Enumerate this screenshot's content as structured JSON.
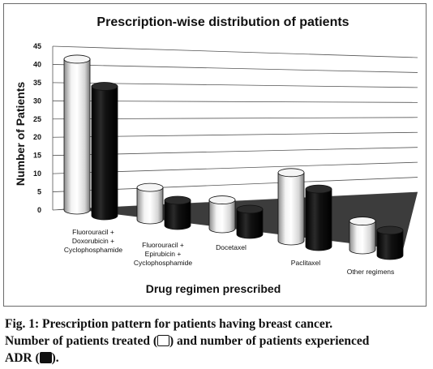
{
  "chart_data": {
    "type": "bar",
    "style": "3d-cylinder",
    "title": "Prescription-wise distribution of patients",
    "xlabel": "Drug regimen prescribed",
    "ylabel": "Number of Patients",
    "ylim": [
      0,
      45
    ],
    "yticks": [
      "0",
      "5",
      "10",
      "15",
      "20",
      "25",
      "30",
      "35",
      "40",
      "45"
    ],
    "grid": true,
    "categories": [
      [
        "Fluorouracil +",
        "Doxorubicin +",
        "Cyclophosphamide"
      ],
      [
        "Fluorouracil +",
        "Epirubicin +",
        "Cyclophosphamide"
      ],
      [
        "Docetaxel"
      ],
      [
        "Paclitaxel"
      ],
      [
        "Other regimens"
      ]
    ],
    "series": [
      {
        "values": [
          42,
          9,
          8,
          19,
          8
        ],
        "color": "#ffffff"
      },
      {
        "values": [
          36,
          7,
          7,
          16,
          7
        ],
        "color": "#000000"
      }
    ]
  },
  "caption": {
    "line1": "Fig. 1: Prescription pattern for patients having breast cancer.",
    "line2a": "Number of patients treated (",
    "line2b": ") and number of patients experienced",
    "line3a": "ADR (",
    "line3b": ")."
  }
}
